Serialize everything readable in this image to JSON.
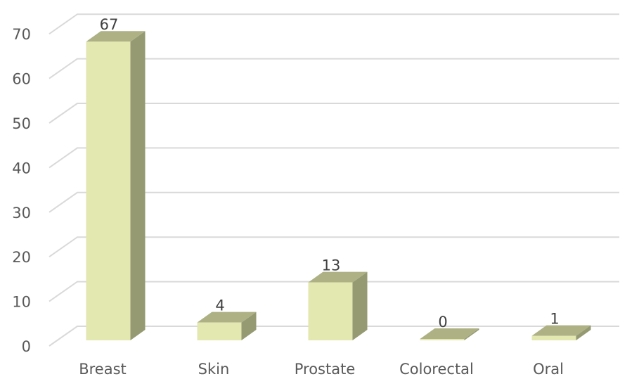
{
  "chart_data": {
    "type": "bar",
    "categories": [
      "Breast",
      "Skin",
      "Prostate",
      "Colorectal",
      "Oral"
    ],
    "values": [
      67,
      4,
      13,
      0,
      1
    ],
    "title": "",
    "xlabel": "",
    "ylabel": "",
    "ylim": [
      0,
      70
    ],
    "yticks": [
      0,
      10,
      20,
      30,
      40,
      50,
      60,
      70
    ],
    "ytick_labels": [
      "0",
      "10",
      "20",
      "30",
      "40",
      "50",
      "60",
      "70"
    ],
    "data_labels": [
      "67",
      "4",
      "13",
      "0",
      "1"
    ],
    "grid": true,
    "legend": "none",
    "style": "3d-column",
    "colors": {
      "front": "#e3e7b0",
      "side": "#969a72",
      "top": "#adb183",
      "grid": "#d9d9d9",
      "text": "#595959",
      "data_label": "#404040"
    }
  }
}
